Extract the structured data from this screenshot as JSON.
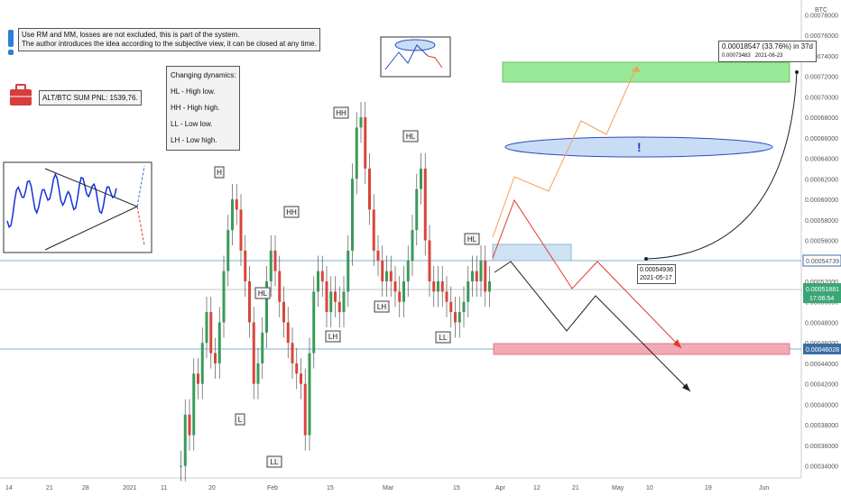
{
  "header": {
    "line1": "Use RM and MM, losses are not excluded, this is part of the system.",
    "line2": "The author introduces the idea according to the subjective view, it can be closed at any time."
  },
  "pnl": {
    "text": "ALT/BTC SUM PNL: 1539,76."
  },
  "dynamics": {
    "title": "Changing dynamics:",
    "items": [
      "HL - High low.",
      "HH - High high.",
      "LL - Low low.",
      "LH - Low high."
    ]
  },
  "price_axis": {
    "currency": "BTC",
    "ticks": [
      "0.00078000",
      "0.00076000",
      "0.00074000",
      "0.00072000",
      "0.00070000",
      "0.00068000",
      "0.00066000",
      "0.00064000",
      "0.00062000",
      "0.00060000",
      "0.00058000",
      "0.00056000",
      "0.00054000",
      "0.00052000",
      "0.00050000",
      "0.00048000",
      "0.00046000",
      "0.00044000",
      "0.00042000",
      "0.00040000",
      "0.00038000",
      "0.00036000",
      "0.00034000"
    ],
    "resistance_label": "0.00054739",
    "current_price": "0.00051881",
    "current_time": "17:06:54",
    "support_label": "0.00046028"
  },
  "time_axis": {
    "ticks": [
      "14",
      "21",
      "28",
      "2021",
      "11",
      "20",
      "Feb",
      "15",
      "Mar",
      "15",
      "Apr",
      "12",
      "21",
      "May",
      "10",
      "19",
      "Jun",
      "14"
    ]
  },
  "annotations": {
    "start_price": "0.00054936",
    "start_date": "2021-05-17",
    "target_change": "0.00018547 (33.76%) in 37d",
    "target_price": "0.00073483",
    "target_date": "2021-06-23",
    "exclamation": "!"
  },
  "pattern_labels": [
    "H",
    "HH",
    "HL",
    "L",
    "LL",
    "HH",
    "LH",
    "HL",
    "LH",
    "LL",
    "HL"
  ],
  "colors": {
    "up": "#3a9a5a",
    "down": "#d9453a",
    "target_zone": "#95e895",
    "stop_zone": "#f2aab4",
    "entry_zone": "#cfe2f3"
  },
  "chart_data": {
    "type": "candlestick",
    "series_name": "ALT/BTC",
    "y_range": [
      0.00033,
      0.00079
    ],
    "x_labels": [
      "14",
      "21",
      "28",
      "2021",
      "11",
      "20",
      "Feb",
      "15",
      "Mar",
      "15",
      "Apr",
      "12",
      "21",
      "May",
      "10",
      "19",
      "Jun",
      "14"
    ],
    "closes": [
      0.00034,
      0.00039,
      0.00037,
      0.00043,
      0.00042,
      0.00046,
      0.00049,
      0.00045,
      0.00044,
      0.00048,
      0.00053,
      0.00057,
      0.0006,
      0.00059,
      0.00055,
      0.00052,
      0.00048,
      0.00042,
      0.00044,
      0.00047,
      0.00052,
      0.00055,
      0.00053,
      0.0005,
      0.00048,
      0.00046,
      0.00044,
      0.00043,
      0.00042,
      0.00037,
      0.00045,
      0.00051,
      0.00053,
      0.00052,
      0.00049,
      0.00051,
      0.0005,
      0.00049,
      0.00051,
      0.00055,
      0.00062,
      0.00067,
      0.00068,
      0.00063,
      0.00059,
      0.00055,
      0.00054,
      0.00052,
      0.00053,
      0.00052,
      0.00051,
      0.0005,
      0.00052,
      0.00054,
      0.00057,
      0.00061,
      0.00063,
      0.00056,
      0.00052,
      0.00051,
      0.00052,
      0.00051,
      0.0005,
      0.00049,
      0.00048,
      0.00049,
      0.0005,
      0.00052,
      0.00053,
      0.00052,
      0.00054,
      0.00051,
      0.00052
    ],
    "levels": {
      "resistance": 0.00054739,
      "current": 0.00051881,
      "support": 0.00046028
    }
  }
}
